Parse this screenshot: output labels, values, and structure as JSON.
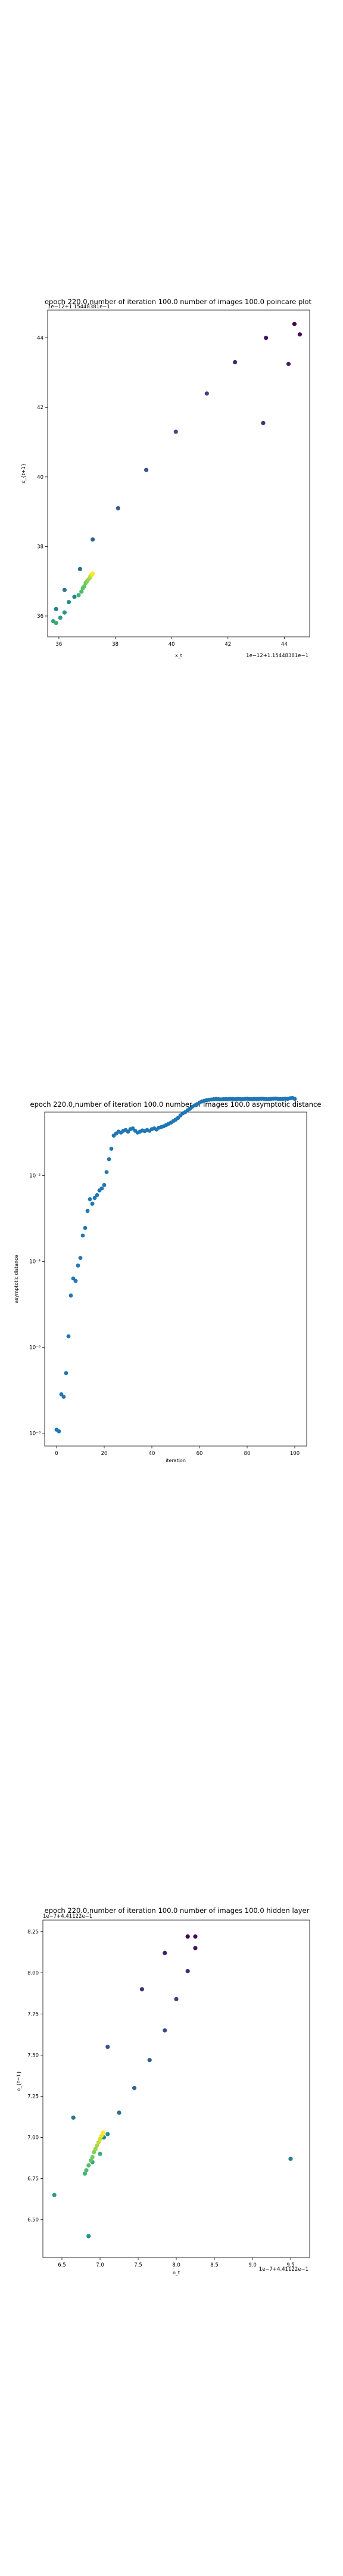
{
  "chart_data": [
    {
      "type": "scatter",
      "title": "epoch 220.0,number of iteration 100.0 number of images 100.0 poincare plot",
      "xlabel": "x_t",
      "ylabel": "x_{t+1}",
      "x_offset_text": "1e−12+1.15448381e−1",
      "y_offset_text": "1e−12+1.15448381e−1",
      "xlim": [
        35.6,
        44.9
      ],
      "ylim": [
        35.4,
        44.8
      ],
      "xticks": [
        36,
        38,
        40,
        42,
        44
      ],
      "yticks": [
        36,
        38,
        40,
        42,
        44
      ],
      "colormap": [
        "#440154",
        "#3b528b",
        "#21918c",
        "#5ec962",
        "#fde725"
      ],
      "points": [
        [
          44.36,
          44.4
        ],
        [
          44.55,
          44.1
        ],
        [
          43.35,
          44.0
        ],
        [
          44.15,
          43.25
        ],
        [
          42.25,
          43.3
        ],
        [
          43.25,
          41.55
        ],
        [
          41.25,
          42.4
        ],
        [
          40.15,
          41.3
        ],
        [
          39.1,
          40.2
        ],
        [
          38.1,
          39.1
        ],
        [
          37.2,
          38.2
        ],
        [
          36.75,
          37.35
        ],
        [
          36.2,
          36.75
        ],
        [
          35.9,
          36.2
        ],
        [
          36.55,
          36.55
        ],
        [
          36.35,
          36.4
        ],
        [
          36.2,
          36.1
        ],
        [
          36.05,
          35.95
        ],
        [
          35.8,
          35.85
        ],
        [
          35.9,
          35.8
        ],
        [
          36.7,
          36.6
        ],
        [
          36.8,
          36.7
        ],
        [
          36.85,
          36.8
        ],
        [
          36.9,
          36.85
        ],
        [
          36.95,
          36.95
        ],
        [
          37.0,
          37.0
        ],
        [
          37.05,
          37.05
        ],
        [
          37.1,
          37.1
        ],
        [
          37.12,
          37.15
        ],
        [
          37.15,
          37.18
        ],
        [
          37.18,
          37.2
        ],
        [
          37.2,
          37.22
        ]
      ]
    },
    {
      "type": "scatter",
      "title": "epoch 220.0,number of iteration 100.0  number of images 100.0 asymptotic distance",
      "xlabel": "iteration",
      "ylabel": "asymptotic distance",
      "yscale": "log",
      "xlim": [
        -5,
        105
      ],
      "ylim": [
        5e-09,
        0.3
      ],
      "xticks": [
        0,
        20,
        40,
        60,
        80,
        100
      ],
      "yticks": [
        1e-08,
        1e-06,
        0.0001,
        0.01
      ],
      "ytick_labels": [
        "10⁻⁸",
        "10⁻⁶",
        "10⁻⁴",
        "10⁻²"
      ],
      "color": "#1f77b4",
      "x": [
        0,
        1,
        2,
        3,
        4,
        5,
        6,
        7,
        8,
        9,
        10,
        11,
        12,
        13,
        14,
        15,
        16,
        17,
        18,
        19,
        20,
        21,
        22,
        23,
        24,
        25,
        26,
        27,
        28,
        29,
        30,
        31,
        32,
        33,
        34,
        35,
        36,
        37,
        38,
        39,
        40,
        41,
        42,
        43,
        44,
        45,
        46,
        47,
        48,
        49,
        50,
        51,
        52,
        53,
        54,
        55,
        56,
        57,
        58,
        59,
        60,
        61,
        62,
        63,
        64,
        65,
        66,
        67,
        68,
        69,
        70,
        71,
        72,
        73,
        74,
        75,
        76,
        77,
        78,
        79,
        80,
        81,
        82,
        83,
        84,
        85,
        86,
        87,
        88,
        89,
        90,
        91,
        92,
        93,
        94,
        95,
        96,
        97,
        98,
        99,
        100
      ],
      "y": [
        1.2e-08,
        1.1e-08,
        8e-08,
        7e-08,
        2.5e-07,
        1.8e-06,
        1.6e-05,
        4e-05,
        3.5e-05,
        8e-05,
        0.00012,
        0.0004,
        0.0006,
        0.0015,
        0.0028,
        0.0022,
        0.003,
        0.0035,
        0.0045,
        0.005,
        0.006,
        0.012,
        0.024,
        0.042,
        0.085,
        0.095,
        0.105,
        0.1,
        0.11,
        0.115,
        0.105,
        0.12,
        0.125,
        0.11,
        0.1,
        0.105,
        0.112,
        0.108,
        0.115,
        0.11,
        0.12,
        0.125,
        0.118,
        0.13,
        0.135,
        0.14,
        0.15,
        0.16,
        0.17,
        0.185,
        0.2,
        0.22,
        0.25,
        0.28,
        0.3,
        0.33,
        0.36,
        0.4,
        0.43,
        0.46,
        0.5,
        0.53,
        0.55,
        0.57,
        0.58,
        0.59,
        0.6,
        0.61,
        0.6,
        0.595,
        0.6,
        0.605,
        0.6,
        0.61,
        0.605,
        0.6,
        0.61,
        0.605,
        0.6,
        0.61,
        0.615,
        0.605,
        0.6,
        0.61,
        0.605,
        0.61,
        0.615,
        0.61,
        0.605,
        0.6,
        0.61,
        0.615,
        0.62,
        0.61,
        0.605,
        0.61,
        0.615,
        0.61,
        0.63,
        0.64,
        0.61
      ]
    },
    {
      "type": "scatter",
      "title": "epoch 220.0,number of iteration 100.0  number of images 100.0 hidden layer",
      "xlabel": "o_t",
      "ylabel": "o_{t+1}",
      "x_offset_text": "1e−7+4.41122e−1",
      "y_offset_text": "1e−7+4.41122e−1",
      "xlim": [
        6.25,
        9.75
      ],
      "ylim": [
        6.27,
        8.32
      ],
      "xticks": [
        6.5,
        7.0,
        7.5,
        8.0,
        8.5,
        9.0,
        9.5
      ],
      "xtick_labels": [
        "6.5",
        "7.0",
        "7.5",
        "8.0",
        "8.5",
        "9.0",
        "9.5"
      ],
      "yticks": [
        6.5,
        6.75,
        7.0,
        7.25,
        7.5,
        7.75,
        8.0,
        8.25
      ],
      "ytick_labels": [
        "6.50",
        "6.75",
        "7.00",
        "7.25",
        "7.50",
        "7.75",
        "8.00",
        "8.25"
      ],
      "colormap": [
        "#440154",
        "#3b528b",
        "#21918c",
        "#5ec962",
        "#fde725"
      ],
      "points": [
        [
          8.15,
          8.22
        ],
        [
          8.25,
          8.22
        ],
        [
          8.25,
          8.15
        ],
        [
          7.85,
          8.12
        ],
        [
          8.15,
          8.01
        ],
        [
          7.55,
          7.9
        ],
        [
          8.0,
          7.84
        ],
        [
          7.85,
          7.65
        ],
        [
          7.1,
          7.55
        ],
        [
          7.65,
          7.47
        ],
        [
          7.45,
          7.3
        ],
        [
          7.25,
          7.15
        ],
        [
          6.65,
          7.12
        ],
        [
          9.5,
          6.87
        ],
        [
          7.05,
          7.0
        ],
        [
          7.1,
          7.02
        ],
        [
          6.85,
          6.4
        ],
        [
          6.4,
          6.65
        ],
        [
          6.9,
          6.85
        ],
        [
          7.0,
          6.9
        ],
        [
          6.8,
          6.78
        ],
        [
          6.82,
          6.8
        ],
        [
          6.85,
          6.83
        ],
        [
          6.88,
          6.86
        ],
        [
          6.9,
          6.88
        ],
        [
          6.92,
          6.91
        ],
        [
          6.94,
          6.93
        ],
        [
          6.96,
          6.95
        ],
        [
          6.98,
          6.97
        ],
        [
          7.0,
          6.99
        ],
        [
          7.02,
          7.01
        ],
        [
          7.04,
          7.03
        ]
      ]
    }
  ]
}
